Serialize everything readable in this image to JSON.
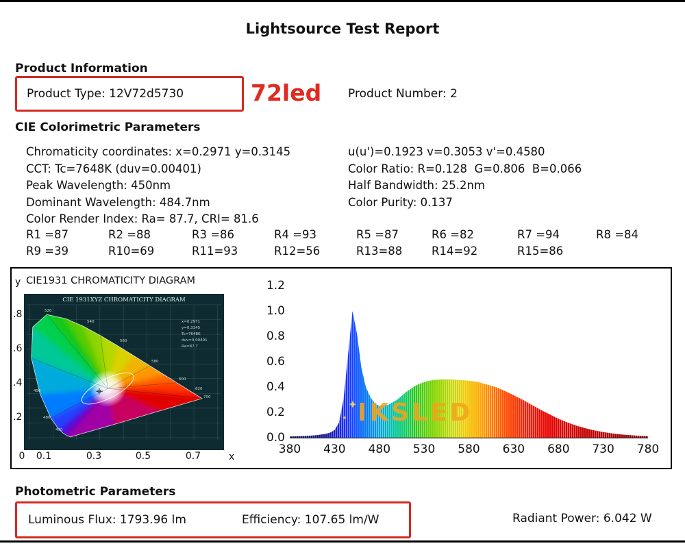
{
  "report": {
    "title": "Lightsource Test Report"
  },
  "colors": {
    "highlight_border": "#d32b23",
    "annotation_text": "#e02b20",
    "watermark": "#f2a51e"
  },
  "product": {
    "heading": "Product Information",
    "type_label": "Product Type: 12V72d5730",
    "type_annotation": "72led",
    "number_label": "Product Number: 2"
  },
  "colorimetric": {
    "heading": "CIE Colorimetric Parameters",
    "left_lines": [
      "Chromaticity coordinates: x=0.2971 y=0.3145",
      "CCT: Tc=7648K (duv=0.00401)",
      "Peak Wavelength: 450nm",
      "Dominant Wavelength: 484.7nm",
      "Color Render Index: Ra= 87.7, CRI= 81.6"
    ],
    "right_lines": [
      "u(u')=0.1923 v=0.3053 v'=0.4580",
      "Color Ratio: R=0.128  G=0.806  B=0.066",
      "Half Bandwidth: 25.2nm",
      "Color Purity: 0.137"
    ],
    "cri_row1": [
      "R1 =87",
      "R2 =88",
      "R3 =86",
      "R4 =93",
      "R5 =87",
      "R6 =82",
      "R7 =94",
      "R8 =84"
    ],
    "cri_row2": [
      "R9 =39",
      "R10=69",
      "R11=93",
      "R12=56",
      "R13=88",
      "R14=92",
      "R15=86"
    ]
  },
  "photometric": {
    "heading": "Photometric Parameters",
    "luminous_flux": "Luminous Flux: 1793.96 lm",
    "efficiency": "Efficiency: 107.65 lm/W",
    "radiant_power": "Radiant Power: 6.042 W"
  },
  "chart_data": [
    {
      "type": "scatter",
      "name": "cie1931-chromaticity-diagram",
      "title": "CIE1931 CHROMATICITY DIAGRAM",
      "inner_title": "CIE 1931XYZ CHROMATICITY DIAGRAM",
      "xlabel": "x",
      "ylabel": "y",
      "x_ticks": [
        "0",
        "0.1",
        "0.3",
        "0.5",
        "0.7"
      ],
      "y_ticks": [
        ".8",
        ".6",
        ".4",
        ".2"
      ],
      "xlim": [
        0,
        0.8
      ],
      "ylim": [
        0,
        0.9
      ],
      "points": [
        {
          "x": 0.2971,
          "y": 0.3145
        }
      ],
      "info_lines": [
        "x=0.2971",
        "y=0.3145",
        "Tc=7648K",
        "duv=0.00401",
        "Ra=87.7"
      ]
    },
    {
      "type": "area",
      "name": "spectral-power-distribution",
      "xlabel_ticks": [
        "380",
        "430",
        "480",
        "530",
        "580",
        "630",
        "680",
        "730",
        "780"
      ],
      "ylabel_ticks": [
        "1.2",
        "1.0",
        "0.8",
        "0.6",
        "0.4",
        "0.2",
        "0.0"
      ],
      "xlim": [
        380,
        780
      ],
      "ylim": [
        0,
        1.2
      ],
      "watermark": "IKSLED",
      "x": [
        380,
        390,
        400,
        410,
        420,
        425,
        430,
        435,
        440,
        445,
        450,
        455,
        460,
        465,
        470,
        475,
        480,
        490,
        500,
        510,
        520,
        530,
        540,
        550,
        560,
        570,
        580,
        590,
        600,
        610,
        620,
        630,
        640,
        650,
        660,
        670,
        680,
        690,
        700,
        710,
        720,
        730,
        740,
        750,
        760,
        770,
        780
      ],
      "values": [
        0.01,
        0.012,
        0.015,
        0.02,
        0.03,
        0.04,
        0.06,
        0.12,
        0.3,
        0.65,
        1.0,
        0.82,
        0.55,
        0.4,
        0.32,
        0.27,
        0.25,
        0.26,
        0.3,
        0.36,
        0.41,
        0.44,
        0.455,
        0.46,
        0.46,
        0.455,
        0.45,
        0.44,
        0.42,
        0.4,
        0.37,
        0.335,
        0.3,
        0.26,
        0.22,
        0.185,
        0.15,
        0.12,
        0.095,
        0.075,
        0.058,
        0.045,
        0.034,
        0.026,
        0.02,
        0.015,
        0.012
      ]
    }
  ]
}
